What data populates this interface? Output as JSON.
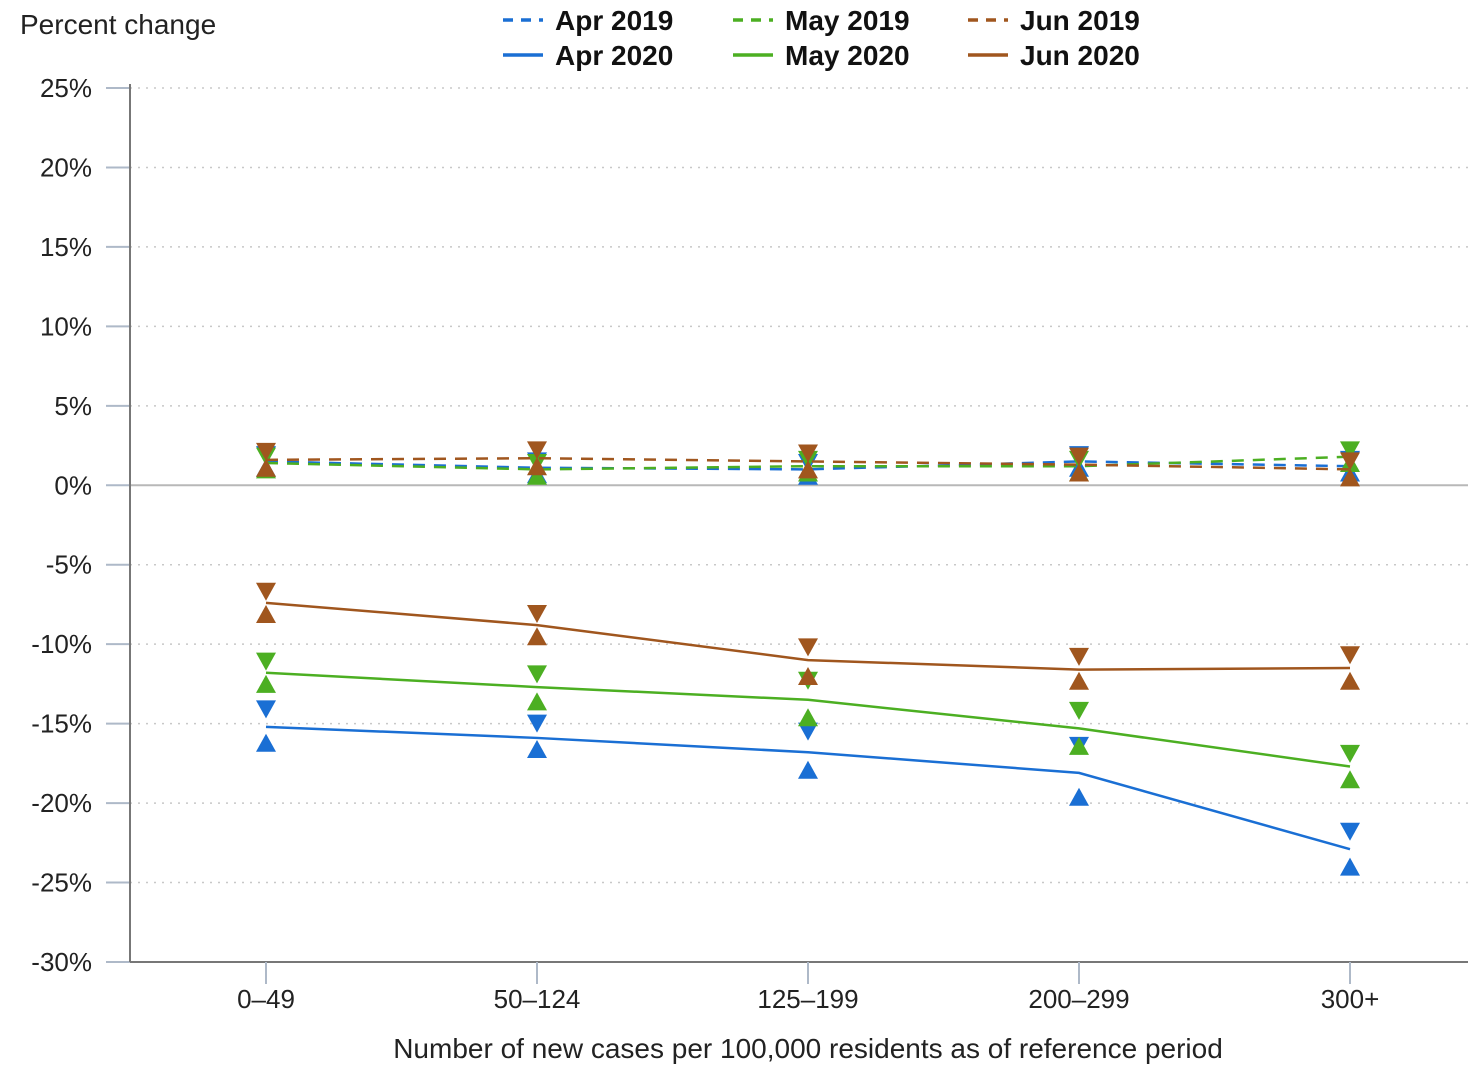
{
  "chart_data": {
    "type": "line",
    "title": "",
    "ylabel": "Percent change",
    "xlabel": "Number of new cases per 100,000 residents as of reference period",
    "categories": [
      "0–49",
      "50–124",
      "125–199",
      "200–299",
      "300+"
    ],
    "ylim": [
      -30,
      25
    ],
    "yticks": [
      25,
      20,
      15,
      10,
      5,
      0,
      -5,
      -10,
      -15,
      -20,
      -25,
      -30
    ],
    "ytick_labels": [
      "25%",
      "20%",
      "15%",
      "10%",
      "5%",
      "0%",
      "-5%",
      "-10%",
      "-15%",
      "-20%",
      "-25%",
      "-30%"
    ],
    "grid": "horizontal dotted",
    "legend_position": "top",
    "colors": {
      "Apr": "#1a6fd4",
      "May": "#4caf22",
      "Jun": "#a0561e"
    },
    "series": [
      {
        "name": "Apr 2019",
        "color": "#1a6fd4",
        "dashed": true,
        "values": [
          1.5,
          1.1,
          1.0,
          1.5,
          1.2
        ],
        "lower": [
          1.1,
          0.7,
          0.6,
          1.1,
          0.8
        ],
        "upper": [
          1.9,
          1.5,
          1.4,
          1.9,
          1.6
        ]
      },
      {
        "name": "May 2019",
        "color": "#4caf22",
        "dashed": true,
        "values": [
          1.4,
          1.0,
          1.2,
          1.2,
          1.8
        ],
        "lower": [
          1.0,
          0.6,
          0.8,
          0.8,
          1.4
        ],
        "upper": [
          1.8,
          1.4,
          1.6,
          1.6,
          2.2
        ]
      },
      {
        "name": "Jun 2019",
        "color": "#a0561e",
        "dashed": true,
        "values": [
          1.6,
          1.7,
          1.5,
          1.3,
          1.0
        ],
        "lower": [
          1.1,
          1.2,
          1.0,
          0.8,
          0.5
        ],
        "upper": [
          2.1,
          2.2,
          2.0,
          1.8,
          1.5
        ]
      },
      {
        "name": "Apr 2020",
        "color": "#1a6fd4",
        "dashed": false,
        "values": [
          -15.2,
          -15.9,
          -16.8,
          -18.1,
          -22.9
        ],
        "lower": [
          -16.2,
          -16.6,
          -17.9,
          -19.6,
          -24.0
        ],
        "upper": [
          -14.1,
          -15.0,
          -15.5,
          -16.4,
          -21.8
        ]
      },
      {
        "name": "May 2020",
        "color": "#4caf22",
        "dashed": false,
        "values": [
          -11.8,
          -12.7,
          -13.5,
          -15.3,
          -17.7
        ],
        "lower": [
          -12.5,
          -13.6,
          -14.6,
          -16.4,
          -18.5
        ],
        "upper": [
          -11.1,
          -11.9,
          -12.3,
          -14.2,
          -16.9
        ]
      },
      {
        "name": "Jun 2020",
        "color": "#a0561e",
        "dashed": false,
        "values": [
          -7.4,
          -8.8,
          -11.0,
          -11.6,
          -11.5
        ],
        "lower": [
          -8.1,
          -9.5,
          -12.0,
          -12.3,
          -12.3
        ],
        "upper": [
          -6.7,
          -8.1,
          -10.2,
          -10.8,
          -10.7
        ]
      }
    ]
  }
}
